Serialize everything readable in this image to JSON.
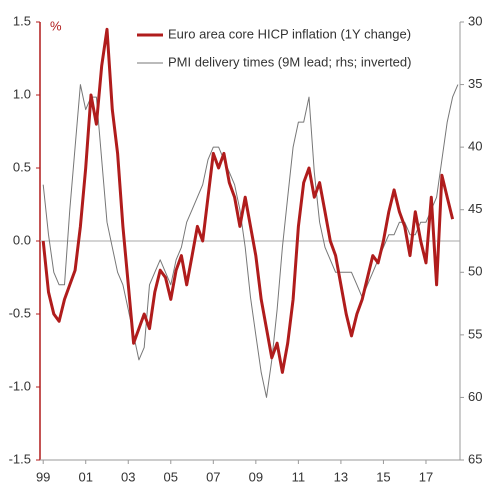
{
  "chart_data": {
    "type": "line",
    "y_label": "%",
    "x": [
      1999.0,
      1999.25,
      1999.5,
      1999.75,
      2000.0,
      2000.25,
      2000.5,
      2000.75,
      2001.0,
      2001.25,
      2001.5,
      2001.75,
      2002.0,
      2002.25,
      2002.5,
      2002.75,
      2003.0,
      2003.25,
      2003.5,
      2003.75,
      2004.0,
      2004.25,
      2004.5,
      2004.75,
      2005.0,
      2005.25,
      2005.5,
      2005.75,
      2006.0,
      2006.25,
      2006.5,
      2006.75,
      2007.0,
      2007.25,
      2007.5,
      2007.75,
      2008.0,
      2008.25,
      2008.5,
      2008.75,
      2009.0,
      2009.25,
      2009.5,
      2009.75,
      2010.0,
      2010.25,
      2010.5,
      2010.75,
      2011.0,
      2011.25,
      2011.5,
      2011.75,
      2012.0,
      2012.25,
      2012.5,
      2012.75,
      2013.0,
      2013.25,
      2013.5,
      2013.75,
      2014.0,
      2014.25,
      2014.5,
      2014.75,
      2015.0,
      2015.25,
      2015.5,
      2015.75,
      2016.0,
      2016.25,
      2016.5,
      2016.75,
      2017.0,
      2017.25,
      2017.5,
      2017.75,
      2018.0,
      2018.25,
      2018.5
    ],
    "series": [
      {
        "name": "Euro area core HICP inflation (1Y change)",
        "color": "#b01c1c",
        "values": [
          0.0,
          -0.35,
          -0.5,
          -0.55,
          -0.4,
          -0.3,
          -0.2,
          0.1,
          0.5,
          1.0,
          0.8,
          1.2,
          1.45,
          0.9,
          0.6,
          0.1,
          -0.3,
          -0.7,
          -0.6,
          -0.5,
          -0.6,
          -0.35,
          -0.2,
          -0.25,
          -0.4,
          -0.2,
          -0.1,
          -0.3,
          -0.1,
          0.1,
          0.0,
          0.3,
          0.6,
          0.5,
          0.6,
          0.4,
          0.3,
          0.1,
          0.3,
          0.1,
          -0.1,
          -0.4,
          -0.6,
          -0.8,
          -0.7,
          -0.9,
          -0.7,
          -0.4,
          0.1,
          0.4,
          0.5,
          0.3,
          0.4,
          0.2,
          0.0,
          -0.1,
          -0.3,
          -0.5,
          -0.65,
          -0.5,
          -0.4,
          -0.25,
          -0.1,
          -0.15,
          0.0,
          0.2,
          0.35,
          0.2,
          0.1,
          -0.1,
          0.2,
          0.0,
          -0.15,
          0.3,
          -0.3,
          0.45,
          0.3,
          0.15,
          null
        ]
      },
      {
        "name": "PMI delivery times (9M lead; rhs; inverted)",
        "color": "#777777",
        "axis": "y2",
        "values": [
          43,
          47,
          50,
          51,
          51,
          45,
          40,
          35,
          37,
          36,
          36,
          41,
          46,
          48,
          50,
          51,
          53,
          55,
          57,
          56,
          51,
          50,
          49,
          50,
          51,
          49,
          48,
          46,
          45,
          44,
          43,
          41,
          40,
          40,
          41,
          42,
          43,
          45,
          48,
          52,
          55,
          58,
          60,
          57,
          53,
          48,
          44,
          40,
          38,
          38,
          36,
          42,
          46,
          48,
          49,
          50,
          50,
          50,
          50,
          51,
          52,
          51,
          50,
          49,
          48,
          47,
          47,
          46,
          46,
          47,
          47,
          46,
          46,
          45,
          44,
          41,
          38,
          36,
          35
        ]
      }
    ],
    "xlim": [
      1998.85,
      2018.6
    ],
    "xticks": [
      {
        "value": 1999,
        "label": "99"
      },
      {
        "value": 2001,
        "label": "01"
      },
      {
        "value": 2003,
        "label": "03"
      },
      {
        "value": 2005,
        "label": "05"
      },
      {
        "value": 2007,
        "label": "07"
      },
      {
        "value": 2009,
        "label": "09"
      },
      {
        "value": 2011,
        "label": "11"
      },
      {
        "value": 2013,
        "label": "13"
      },
      {
        "value": 2015,
        "label": "15"
      },
      {
        "value": 2017,
        "label": "17"
      }
    ],
    "ylim": [
      -1.5,
      1.5
    ],
    "yticks": [
      -1.5,
      {
        "value": -1,
        "label": "-1.0"
      },
      -0.5,
      {
        "value": 0,
        "label": "0.0"
      },
      0.5,
      {
        "value": 1,
        "label": "1.0"
      },
      1.5
    ],
    "y2lim": [
      65,
      30
    ],
    "y2ticks": [
      30,
      35,
      40,
      45,
      50,
      55,
      60,
      65
    ],
    "left_axis_color": "#b01c1c",
    "right_axis_color": "#999999"
  }
}
